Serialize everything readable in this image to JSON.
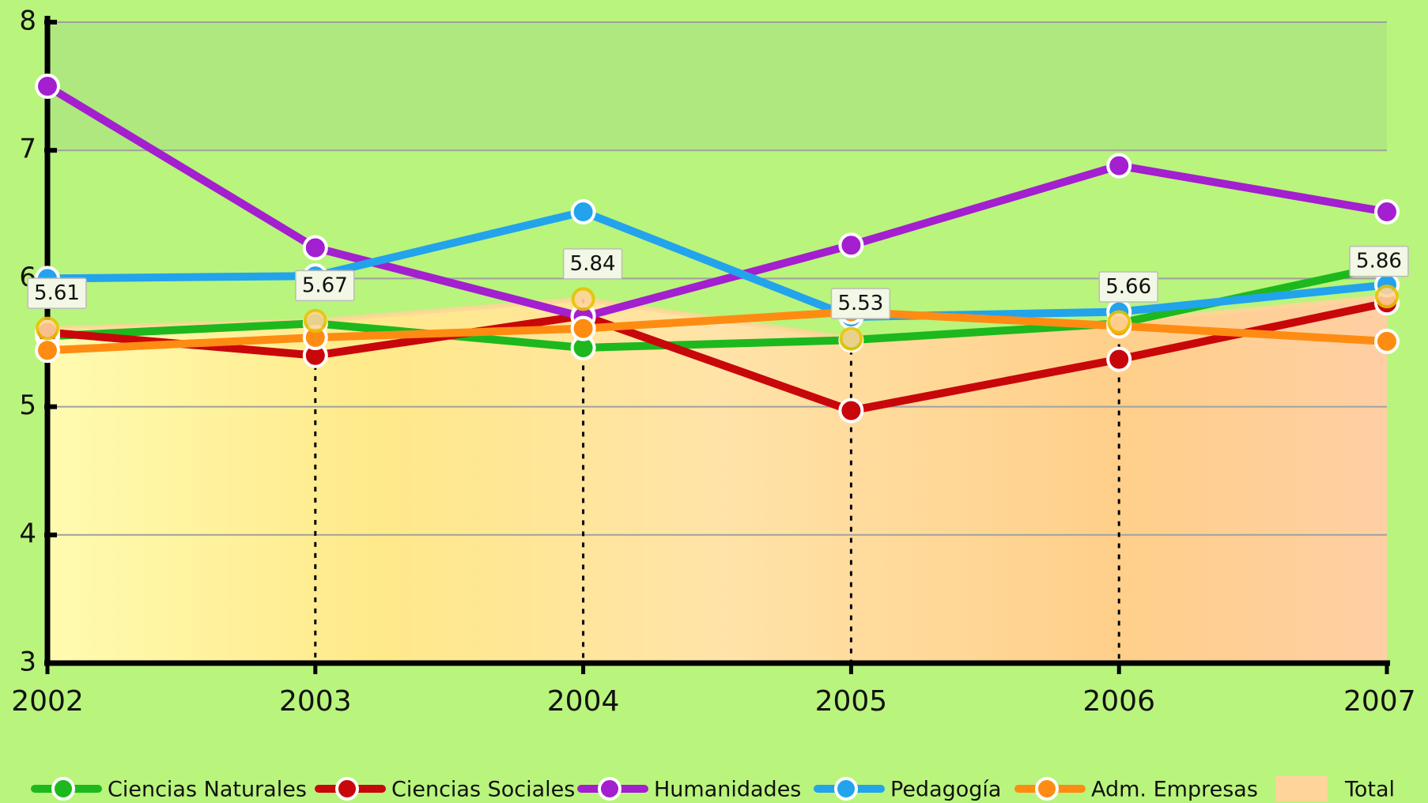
{
  "chart_data": {
    "type": "line",
    "x": [
      2002,
      2003,
      2004,
      2005,
      2006,
      2007
    ],
    "xlim": [
      2002,
      2007
    ],
    "ylim": [
      3,
      8
    ],
    "yticks": [
      3,
      4,
      5,
      6,
      7,
      8
    ],
    "grid": true,
    "series": [
      {
        "name": "Ciencias Naturales",
        "color": "#1db81d",
        "values": [
          5.55,
          5.65,
          5.46,
          5.52,
          5.65,
          6.1
        ]
      },
      {
        "name": "Ciencias Sociales",
        "color": "#c8070b",
        "values": [
          5.58,
          5.4,
          5.71,
          4.97,
          5.37,
          5.81
        ]
      },
      {
        "name": "Humanidades",
        "color": "#a31fcf",
        "values": [
          7.5,
          6.24,
          5.7,
          6.26,
          6.88,
          6.52
        ]
      },
      {
        "name": "Pedagogía",
        "color": "#22a3ec",
        "values": [
          6.0,
          6.02,
          6.52,
          5.7,
          5.74,
          5.95
        ]
      },
      {
        "name": "Adm. Empresas",
        "color": "#ff8c12",
        "values": [
          5.44,
          5.54,
          5.61,
          5.74,
          5.63,
          5.51
        ]
      },
      {
        "name": "Total",
        "color": "#ffd49a",
        "area": true,
        "values": [
          5.61,
          5.67,
          5.84,
          5.53,
          5.66,
          5.86
        ]
      }
    ]
  }
}
